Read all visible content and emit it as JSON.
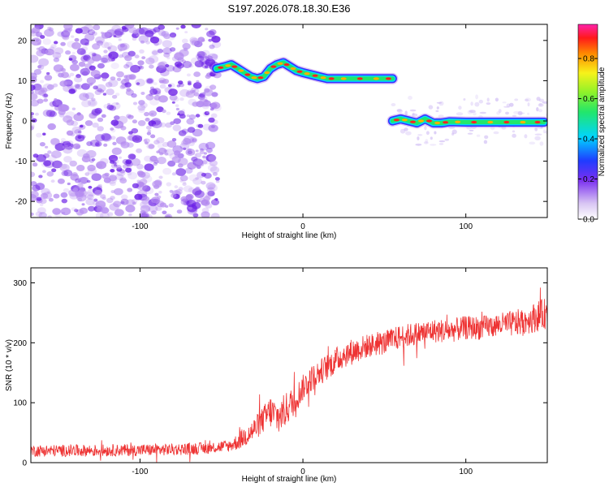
{
  "title": "S197.2026.078.18.30.E36",
  "chart_data": [
    {
      "type": "heatmap",
      "title": "S197.2026.078.18.30.E36",
      "xlabel": "Height of straight line (km)",
      "ylabel": "Frequency (Hz)",
      "xlim": [
        -167,
        150
      ],
      "ylim": [
        -24,
        24
      ],
      "xticks": [
        -100,
        0,
        100
      ],
      "yticks": [
        -20,
        -10,
        0,
        10,
        20
      ],
      "colorbar": {
        "label": "Normalized spectral amplitude",
        "range": [
          0,
          0.97
        ],
        "ticks": [
          0.0,
          0.2,
          0.4,
          0.6,
          0.8
        ]
      },
      "noise_region_x": [
        -167,
        -52
      ],
      "ridge_upper": {
        "x": [
          -53,
          -48,
          -44,
          -40,
          -36,
          -32,
          -28,
          -24,
          -20,
          -16,
          -12,
          -8,
          -4,
          0,
          5,
          10,
          15,
          20,
          30,
          40,
          50,
          55
        ],
        "frequency": [
          13,
          13.5,
          14,
          13,
          12,
          11,
          10.5,
          11,
          13,
          14,
          14.5,
          13.5,
          12.5,
          12,
          11.5,
          11,
          10.5,
          10.5,
          10.5,
          10.5,
          10.5,
          10.5
        ]
      },
      "ridge_lower": {
        "x": [
          55,
          60,
          65,
          70,
          75,
          80,
          85,
          90,
          100,
          110,
          120,
          130,
          140,
          148
        ],
        "frequency": [
          0,
          0.5,
          0,
          -0.5,
          0.5,
          -0.5,
          -0.5,
          -0.2,
          -0.3,
          -0.3,
          -0.3,
          -0.3,
          -0.3,
          -0.3
        ]
      }
    },
    {
      "type": "line",
      "xlabel": "Height of straight line (km)",
      "ylabel": "SNR (10 * v/v)",
      "xlim": [
        -167,
        150
      ],
      "ylim": [
        0,
        325
      ],
      "xticks": [
        -100,
        0,
        100
      ],
      "yticks": [
        0,
        100,
        200,
        300
      ],
      "color": "#ee3333",
      "series": [
        {
          "name": "SNR",
          "x": [
            -167,
            -140,
            -100,
            -80,
            -60,
            -45,
            -40,
            -35,
            -30,
            -25,
            -20,
            -15,
            -10,
            -5,
            0,
            5,
            10,
            15,
            20,
            25,
            30,
            40,
            50,
            60,
            70,
            80,
            90,
            100,
            110,
            120,
            130,
            140,
            145,
            150
          ],
          "y": [
            20,
            20,
            21,
            22,
            24,
            28,
            35,
            45,
            55,
            70,
            85,
            75,
            90,
            105,
            125,
            140,
            150,
            160,
            170,
            180,
            185,
            195,
            200,
            210,
            215,
            220,
            220,
            225,
            225,
            230,
            232,
            240,
            245,
            250
          ],
          "noise": [
            10,
            10,
            10,
            10,
            10,
            10,
            14,
            18,
            20,
            22,
            28,
            30,
            28,
            25,
            22,
            22,
            22,
            22,
            22,
            22,
            22,
            20,
            20,
            20,
            20,
            20,
            20,
            20,
            20,
            20,
            22,
            24,
            26,
            26
          ]
        }
      ]
    }
  ]
}
